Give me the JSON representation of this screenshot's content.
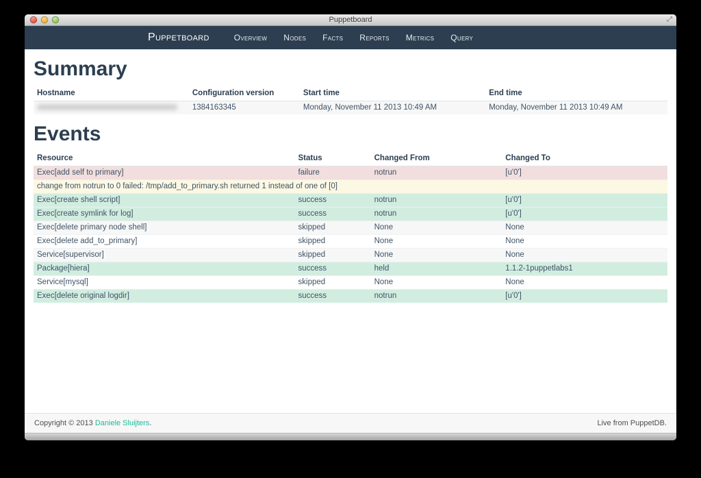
{
  "window": {
    "title": "Puppetboard"
  },
  "navbar": {
    "brand": "Puppetboard",
    "items": [
      {
        "label": "Overview"
      },
      {
        "label": "Nodes"
      },
      {
        "label": "Facts"
      },
      {
        "label": "Reports"
      },
      {
        "label": "Metrics"
      },
      {
        "label": "Query"
      }
    ]
  },
  "summary": {
    "heading": "Summary",
    "columns": [
      "Hostname",
      "Configuration version",
      "Start time",
      "End time"
    ],
    "row": {
      "hostname_redacted": true,
      "configuration_version": "1384163345",
      "start_time": "Monday, November 11 2013 10:49 AM",
      "end_time": "Monday, November 11 2013 10:49 AM"
    }
  },
  "events": {
    "heading": "Events",
    "columns": [
      "Resource",
      "Status",
      "Changed From",
      "Changed To"
    ],
    "rows": [
      {
        "resource": "Exec[add self to primary]",
        "status": "failure",
        "changed_from": "notrun",
        "changed_to": "[u'0']",
        "row_style": "danger"
      },
      {
        "message": "change from notrun to 0 failed: /tmp/add_to_primary.sh returned 1 instead of one of [0]",
        "row_style": "warning"
      },
      {
        "resource": "Exec[create shell script]",
        "status": "success",
        "changed_from": "notrun",
        "changed_to": "[u'0']",
        "row_style": "success"
      },
      {
        "resource": "Exec[create symlink for log]",
        "status": "success",
        "changed_from": "notrun",
        "changed_to": "[u'0']",
        "row_style": "success"
      },
      {
        "resource": "Exec[delete primary node shell]",
        "status": "skipped",
        "changed_from": "None",
        "changed_to": "None",
        "row_style": "striped"
      },
      {
        "resource": "Exec[delete add_to_primary]",
        "status": "skipped",
        "changed_from": "None",
        "changed_to": "None",
        "row_style": "plain"
      },
      {
        "resource": "Service[supervisor]",
        "status": "skipped",
        "changed_from": "None",
        "changed_to": "None",
        "row_style": "striped"
      },
      {
        "resource": "Package[hiera]",
        "status": "success",
        "changed_from": "held",
        "changed_to": "1.1.2-1puppetlabs1",
        "row_style": "success"
      },
      {
        "resource": "Service[mysql]",
        "status": "skipped",
        "changed_from": "None",
        "changed_to": "None",
        "row_style": "plain"
      },
      {
        "resource": "Exec[delete original logdir]",
        "status": "success",
        "changed_from": "notrun",
        "changed_to": "[u'0']",
        "row_style": "success"
      }
    ]
  },
  "footer": {
    "copyright_prefix": "Copyright © 2013 ",
    "copyright_link": "Daniele Sluijters",
    "copyright_suffix": ".",
    "live_text": "Live from PuppetDB."
  },
  "colors": {
    "navbar_bg": "#2c3e50",
    "heading_text": "#2c3e50",
    "link_teal": "#18bc9c",
    "row_danger": "#f2dede",
    "row_warning": "#fcf8e3",
    "row_success": "#d1ede0",
    "row_striped": "#f7f7f7"
  }
}
